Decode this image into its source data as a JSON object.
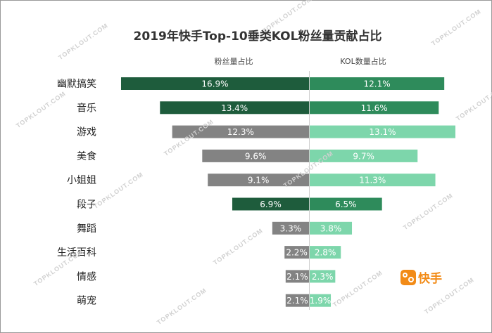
{
  "watermark": "TOPKLOUT.COM",
  "logo": {
    "text": "快手"
  },
  "chart_data": {
    "type": "bar",
    "title": "2019年快手Top-10垂类KOL粉丝量贡献占比",
    "categories": [
      "幽默搞笑",
      "音乐",
      "游戏",
      "美食",
      "小姐姐",
      "段子",
      "舞蹈",
      "生活百科",
      "情感",
      "萌宠"
    ],
    "series": [
      {
        "name": "粉丝量占比",
        "values": [
          16.9,
          13.4,
          12.3,
          9.6,
          9.1,
          6.9,
          3.3,
          2.2,
          2.1,
          2.1
        ],
        "labels": [
          "16.9%",
          "13.4%",
          "12.3%",
          "9.6%",
          "9.1%",
          "6.9%",
          "3.3%",
          "2.2%",
          "2.1%",
          "2.1%"
        ],
        "colors": [
          "#1e5c3c",
          "#1e5c3c",
          "#838383",
          "#838383",
          "#838383",
          "#1e5c3c",
          "#838383",
          "#838383",
          "#838383",
          "#838383"
        ]
      },
      {
        "name": "KOL数量占比",
        "values": [
          12.1,
          11.6,
          13.1,
          9.7,
          11.3,
          6.5,
          3.8,
          2.8,
          2.3,
          1.9
        ],
        "labels": [
          "12.1%",
          "11.6%",
          "13.1%",
          "9.7%",
          "11.3%",
          "6.5%",
          "3.8%",
          "2.8%",
          "2.3%",
          "1.9%"
        ],
        "colors": [
          "#2e8b5b",
          "#2e8b5b",
          "#7dd6ab",
          "#7dd6ab",
          "#7dd6ab",
          "#2e8b5b",
          "#7dd6ab",
          "#7dd6ab",
          "#7dd6ab",
          "#7dd6ab"
        ]
      }
    ],
    "grid": false,
    "legend": "top, above each side"
  }
}
